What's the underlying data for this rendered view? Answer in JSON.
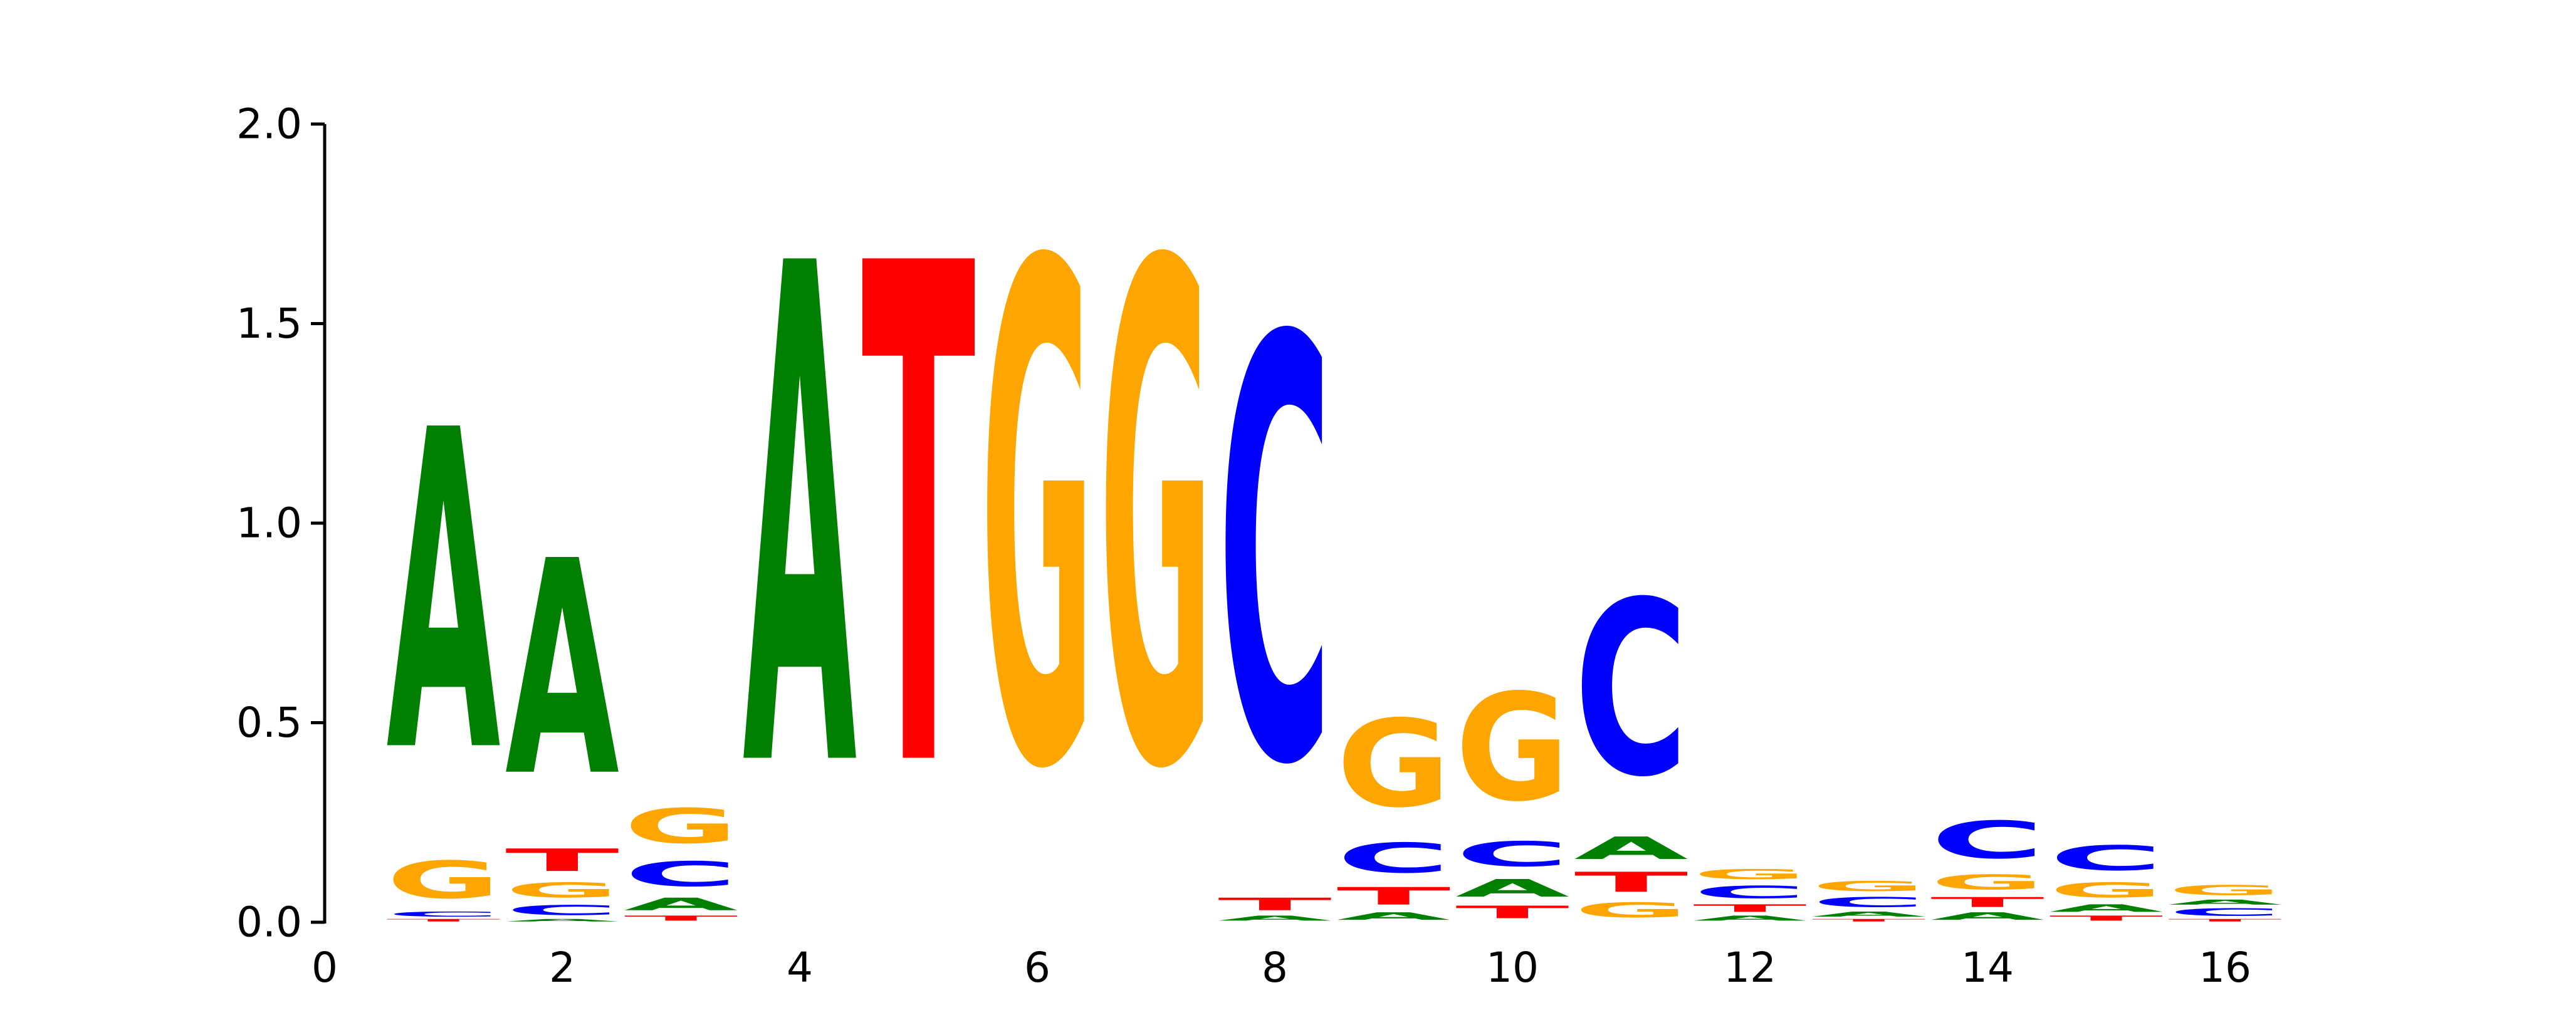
{
  "chart_data": {
    "type": "sequence-logo",
    "title": "",
    "xlabel": "",
    "ylabel": "",
    "xlim": [
      0,
      17
    ],
    "ylim": [
      0,
      2.0
    ],
    "x_ticks": [
      0,
      2,
      4,
      6,
      8,
      10,
      12,
      14,
      16
    ],
    "x_tick_labels": [
      "0",
      "2",
      "4",
      "6",
      "8",
      "10",
      "12",
      "14",
      "16"
    ],
    "y_ticks": [
      0.0,
      0.5,
      1.0,
      1.5,
      2.0
    ],
    "y_tick_labels": [
      "0.0",
      "0.5",
      "1.0",
      "1.5",
      "2.0"
    ],
    "colors": {
      "A": "#008000",
      "C": "#0000ff",
      "G": "#ffa500",
      "T": "#ff0000"
    },
    "positions": [
      {
        "pos": 1,
        "stack": [
          [
            "T",
            0.01
          ],
          [
            "C",
            0.02
          ],
          [
            "G",
            0.15
          ],
          [
            "A",
            1.28
          ]
        ]
      },
      {
        "pos": 2,
        "stack": [
          [
            "A",
            0.01
          ],
          [
            "C",
            0.04
          ],
          [
            "G",
            0.06
          ],
          [
            "T",
            0.09
          ],
          [
            "A",
            0.86
          ]
        ]
      },
      {
        "pos": 3,
        "stack": [
          [
            "T",
            0.02
          ],
          [
            "A",
            0.05
          ],
          [
            "C",
            0.1
          ],
          [
            "G",
            0.14
          ]
        ]
      },
      {
        "pos": 4,
        "stack": [
          [
            "A",
            2.0
          ]
        ]
      },
      {
        "pos": 5,
        "stack": [
          [
            "T",
            2.0
          ]
        ]
      },
      {
        "pos": 6,
        "stack": [
          [
            "G",
            2.0
          ]
        ]
      },
      {
        "pos": 7,
        "stack": [
          [
            "G",
            2.0
          ]
        ]
      },
      {
        "pos": 8,
        "stack": [
          [
            "A",
            0.02
          ],
          [
            "T",
            0.05
          ],
          [
            "C",
            1.69
          ]
        ]
      },
      {
        "pos": 9,
        "stack": [
          [
            "A",
            0.03
          ],
          [
            "T",
            0.07
          ],
          [
            "C",
            0.12
          ],
          [
            "G",
            0.35
          ]
        ]
      },
      {
        "pos": 10,
        "stack": [
          [
            "T",
            0.05
          ],
          [
            "A",
            0.07
          ],
          [
            "C",
            0.1
          ],
          [
            "G",
            0.43
          ]
        ]
      },
      {
        "pos": 11,
        "stack": [
          [
            "G",
            0.06
          ],
          [
            "T",
            0.08
          ],
          [
            "A",
            0.09
          ],
          [
            "C",
            0.7
          ]
        ]
      },
      {
        "pos": 12,
        "stack": [
          [
            "A",
            0.02
          ],
          [
            "T",
            0.03
          ],
          [
            "C",
            0.05
          ],
          [
            "G",
            0.04
          ]
        ]
      },
      {
        "pos": 13,
        "stack": [
          [
            "T",
            0.01
          ],
          [
            "A",
            0.02
          ],
          [
            "C",
            0.04
          ],
          [
            "G",
            0.04
          ]
        ]
      },
      {
        "pos": 14,
        "stack": [
          [
            "A",
            0.03
          ],
          [
            "T",
            0.04
          ],
          [
            "G",
            0.06
          ],
          [
            "C",
            0.15
          ]
        ]
      },
      {
        "pos": 15,
        "stack": [
          [
            "T",
            0.02
          ],
          [
            "A",
            0.03
          ],
          [
            "G",
            0.06
          ],
          [
            "C",
            0.1
          ]
        ]
      },
      {
        "pos": 16,
        "stack": [
          [
            "T",
            0.01
          ],
          [
            "C",
            0.03
          ],
          [
            "A",
            0.02
          ],
          [
            "G",
            0.04
          ]
        ]
      }
    ]
  }
}
